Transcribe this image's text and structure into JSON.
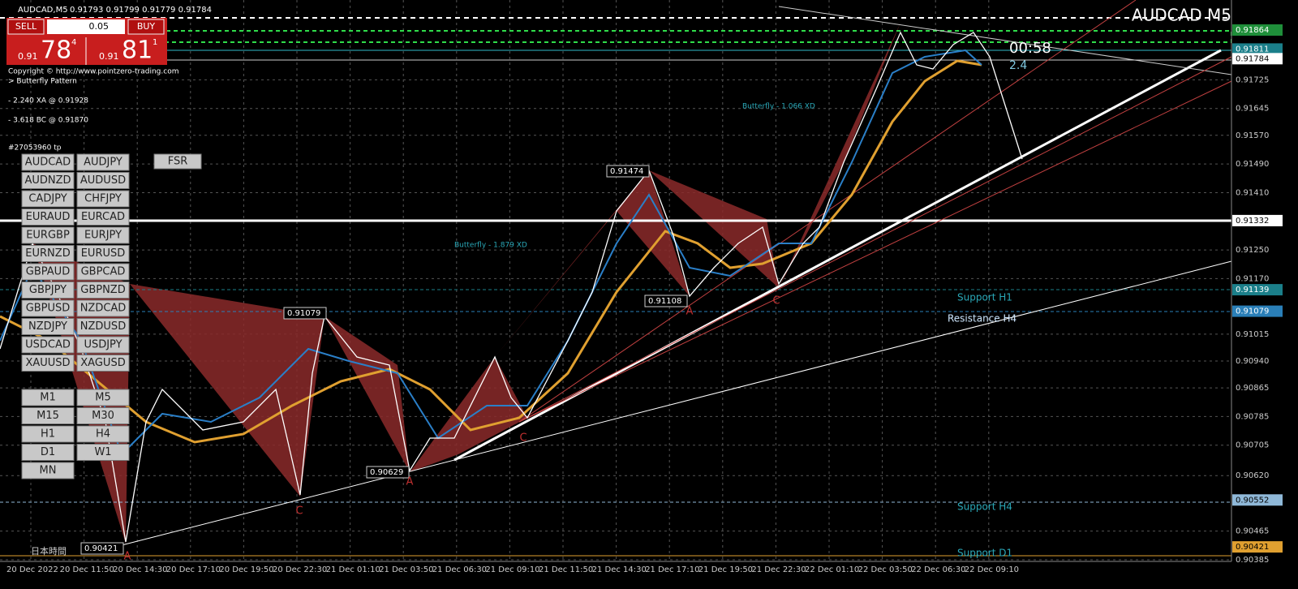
{
  "header": {
    "symbol_timeframe": "AUDCAD,M5",
    "quote": "0.91793 0.91799 0.91779 0.91784"
  },
  "chart_title": "AUDCAD M5",
  "trade_panel": {
    "sell": "SELL",
    "buy": "BUY",
    "lot": "0.05",
    "sell_prefix": "0.91",
    "sell_big": "78",
    "sell_sup": "4",
    "buy_prefix": "0.91",
    "buy_big": "81",
    "buy_sup": "1"
  },
  "info_lines": [
    "Copyright © http://www.pointzero-trading.com",
    "> Butterfly Pattern",
    "- 2.240 XA @ 0.91928",
    "- 3.618 BC @ 0.91870",
    "#27053960 tp"
  ],
  "symbols": [
    "AUDCAD",
    "AUDJPY",
    "AUDNZD",
    "AUDUSD",
    "CADJPY",
    "CHFJPY",
    "EURAUD",
    "EURCAD",
    "EURGBP",
    "EURJPY",
    "EURNZD",
    "EURUSD",
    "GBPAUD",
    "GBPCAD",
    "GBPJPY",
    "GBPNZD",
    "GBPUSD",
    "NZDCAD",
    "NZDJPY",
    "NZDUSD",
    "USDCAD",
    "USDJPY",
    "XAUUSD",
    "XAGUSD"
  ],
  "timeframes": [
    "M1",
    "M5",
    "M15",
    "M30",
    "H1",
    "H4",
    "D1",
    "W1",
    "MN"
  ],
  "fsr": "FSR",
  "countdown": "00:58",
  "spread": "2.4",
  "price_axis": [
    {
      "label": "0.91864",
      "box": "#1f8f3a"
    },
    {
      "label": "0.91811",
      "box": "#1b7f8a"
    },
    {
      "label": "0.91784",
      "box": "#ffffff"
    },
    {
      "label": "0.91725"
    },
    {
      "label": "0.91645"
    },
    {
      "label": "0.91570"
    },
    {
      "label": "0.91490"
    },
    {
      "label": "0.91410"
    },
    {
      "label": "0.91332",
      "box": "#ffffff"
    },
    {
      "label": "0.91250"
    },
    {
      "label": "0.91170"
    },
    {
      "label": "0.91139",
      "box": "#1b7f8a"
    },
    {
      "label": "0.91079",
      "box": "#2a7fb8"
    },
    {
      "label": "0.91015"
    },
    {
      "label": "0.90940"
    },
    {
      "label": "0.90865"
    },
    {
      "label": "0.90785"
    },
    {
      "label": "0.90705"
    },
    {
      "label": "0.90620"
    },
    {
      "label": "0.90552",
      "box": "#8fb8d8"
    },
    {
      "label": "0.90465"
    },
    {
      "label": "0.90421",
      "box": "#e0a030"
    },
    {
      "label": "0.90385"
    }
  ],
  "time_axis": [
    "20 Dec 2022",
    "20 Dec 11:50",
    "20 Dec 14:30",
    "20 Dec 17:10",
    "20 Dec 19:50",
    "20 Dec 22:30",
    "21 Dec 01:10",
    "21 Dec 03:50",
    "21 Dec 06:30",
    "21 Dec 09:10",
    "21 Dec 11:50",
    "21 Dec 14:30",
    "21 Dec 17:10",
    "21 Dec 19:50",
    "21 Dec 22:30",
    "22 Dec 01:10",
    "22 Dec 03:50",
    "22 Dec 06:30",
    "22 Dec 09:10"
  ],
  "level_labels": [
    "Support H1",
    "Resistance H4",
    "Support H4",
    "Support D1"
  ],
  "pattern_labels": [
    "Butterfly - 1.879 XD",
    "Butterfly - 1.066 XD"
  ],
  "point_labels": [
    "0.91474",
    "0.91079",
    "0.91108",
    "0.90629",
    "0.90421"
  ],
  "letters": [
    "A",
    "C",
    "A",
    "C",
    "A",
    "C"
  ],
  "local_time": "日本時間"
}
